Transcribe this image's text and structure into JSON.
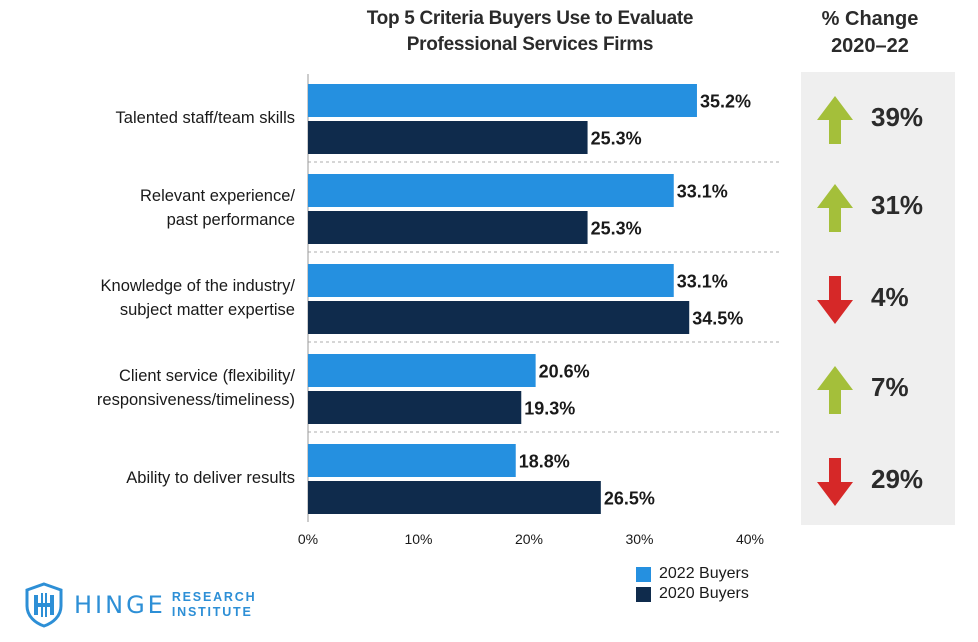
{
  "chart_data": {
    "type": "bar",
    "orientation": "horizontal",
    "title_line1": "Top 5 Criteria Buyers Use to Evaluate",
    "title_line2": "Professional Services Firms",
    "categories": [
      [
        "Talented staff/team skills"
      ],
      [
        "Relevant experience/",
        "past performance"
      ],
      [
        "Knowledge of the industry/",
        "subject matter expertise"
      ],
      [
        "Client service (flexibility/",
        "responsiveness/timeliness)"
      ],
      [
        "Ability to deliver results"
      ]
    ],
    "series": [
      {
        "name": "2022 Buyers",
        "color": "#2590e0",
        "values": [
          35.2,
          33.1,
          33.1,
          20.6,
          18.8
        ],
        "labels": [
          "35.2%",
          "33.1%",
          "33.1%",
          "20.6%",
          "18.8%"
        ]
      },
      {
        "name": "2020 Buyers",
        "color": "#0f2b4c",
        "values": [
          25.3,
          25.3,
          34.5,
          19.3,
          26.5
        ],
        "labels": [
          "25.3%",
          "25.3%",
          "34.5%",
          "19.3%",
          "26.5%"
        ]
      }
    ],
    "xlim": [
      0,
      40
    ],
    "xticks": [
      "0%",
      "10%",
      "20%",
      "30%",
      "40%"
    ],
    "xtick_values": [
      0,
      10,
      20,
      30,
      40
    ],
    "grid": false,
    "legend_position": "bottom-right"
  },
  "change": {
    "header_line1": "% Change",
    "header_line2": "2020–22",
    "items": [
      {
        "direction": "up",
        "value": "39%",
        "icon": "arrow-up-icon",
        "color": "#a4bf3a"
      },
      {
        "direction": "up",
        "value": "31%",
        "icon": "arrow-up-icon",
        "color": "#a4bf3a"
      },
      {
        "direction": "down",
        "value": "4%",
        "icon": "arrow-down-icon",
        "color": "#d62828"
      },
      {
        "direction": "up",
        "value": "7%",
        "icon": "arrow-up-icon",
        "color": "#a4bf3a"
      },
      {
        "direction": "down",
        "value": "29%",
        "icon": "arrow-down-icon",
        "color": "#d62828"
      }
    ]
  },
  "logo": {
    "word": "HINGE",
    "sub_line1": "RESEARCH",
    "sub_line2": "INSTITUTE",
    "color": "#2d8fd6"
  }
}
